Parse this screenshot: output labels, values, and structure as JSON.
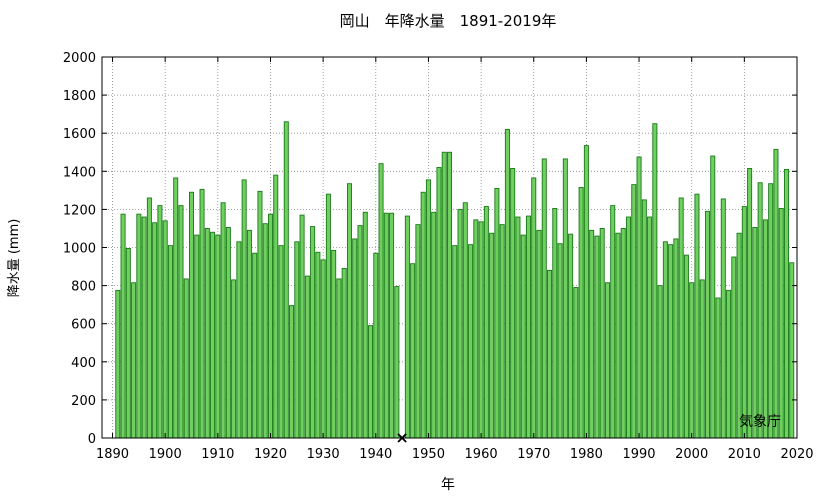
{
  "chart_data": {
    "type": "bar",
    "title": "岡山　年降水量　1891-2019年",
    "xlabel": "年",
    "ylabel": "降水量 (mm)",
    "source_label": "気象庁",
    "xlim": [
      1888,
      2020
    ],
    "ylim": [
      0,
      2000
    ],
    "x_ticks": [
      1890,
      1900,
      1910,
      1920,
      1930,
      1940,
      1950,
      1960,
      1970,
      1980,
      1990,
      2000,
      2010,
      2020
    ],
    "y_ticks": [
      0,
      200,
      400,
      600,
      800,
      1000,
      1200,
      1400,
      1600,
      1800,
      2000
    ],
    "grid": true,
    "bar_color": "#6fcf5f",
    "bar_edge_color": "#1a7a1a",
    "missing_marker": {
      "x": 1945,
      "symbol": "×"
    },
    "x": [
      1891,
      1892,
      1893,
      1894,
      1895,
      1896,
      1897,
      1898,
      1899,
      1900,
      1901,
      1902,
      1903,
      1904,
      1905,
      1906,
      1907,
      1908,
      1909,
      1910,
      1911,
      1912,
      1913,
      1914,
      1915,
      1916,
      1917,
      1918,
      1919,
      1920,
      1921,
      1922,
      1923,
      1924,
      1925,
      1926,
      1927,
      1928,
      1929,
      1930,
      1931,
      1932,
      1933,
      1934,
      1935,
      1936,
      1937,
      1938,
      1939,
      1940,
      1941,
      1942,
      1943,
      1944,
      1946,
      1947,
      1948,
      1949,
      1950,
      1951,
      1952,
      1953,
      1954,
      1955,
      1956,
      1957,
      1958,
      1959,
      1960,
      1961,
      1962,
      1963,
      1964,
      1965,
      1966,
      1967,
      1968,
      1969,
      1970,
      1971,
      1972,
      1973,
      1974,
      1975,
      1976,
      1977,
      1978,
      1979,
      1980,
      1981,
      1982,
      1983,
      1984,
      1985,
      1986,
      1987,
      1988,
      1989,
      1990,
      1991,
      1992,
      1993,
      1994,
      1995,
      1996,
      1997,
      1998,
      1999,
      2000,
      2001,
      2002,
      2003,
      2004,
      2005,
      2006,
      2007,
      2008,
      2009,
      2010,
      2011,
      2012,
      2013,
      2014,
      2015,
      2016,
      2017,
      2018,
      2019
    ],
    "values": [
      775,
      1175,
      995,
      815,
      1175,
      1160,
      1260,
      1130,
      1220,
      1140,
      1010,
      1365,
      1220,
      835,
      1290,
      1065,
      1305,
      1100,
      1080,
      1065,
      1235,
      1105,
      830,
      1030,
      1355,
      1090,
      970,
      1295,
      1125,
      1175,
      1380,
      1010,
      1660,
      695,
      1030,
      1170,
      850,
      1110,
      975,
      935,
      1280,
      985,
      835,
      890,
      1335,
      1045,
      1115,
      1185,
      590,
      970,
      1440,
      1180,
      1180,
      795,
      1165,
      915,
      1120,
      1290,
      1355,
      1185,
      1420,
      1500,
      1500,
      1010,
      1200,
      1235,
      1015,
      1145,
      1135,
      1215,
      1075,
      1310,
      1120,
      1620,
      1415,
      1160,
      1065,
      1165,
      1365,
      1090,
      1465,
      880,
      1205,
      1020,
      1465,
      1070,
      790,
      1315,
      1535,
      1090,
      1060,
      1100,
      815,
      1220,
      1075,
      1100,
      1160,
      1330,
      1475,
      1250,
      1160,
      1650,
      800,
      1030,
      1015,
      1045,
      1260,
      960,
      815,
      1280,
      830,
      1190,
      1480,
      735,
      1255,
      775,
      950,
      1075,
      1215,
      1415,
      1105,
      1340,
      1145,
      1335,
      1515,
      1205,
      1410,
      920
    ]
  }
}
